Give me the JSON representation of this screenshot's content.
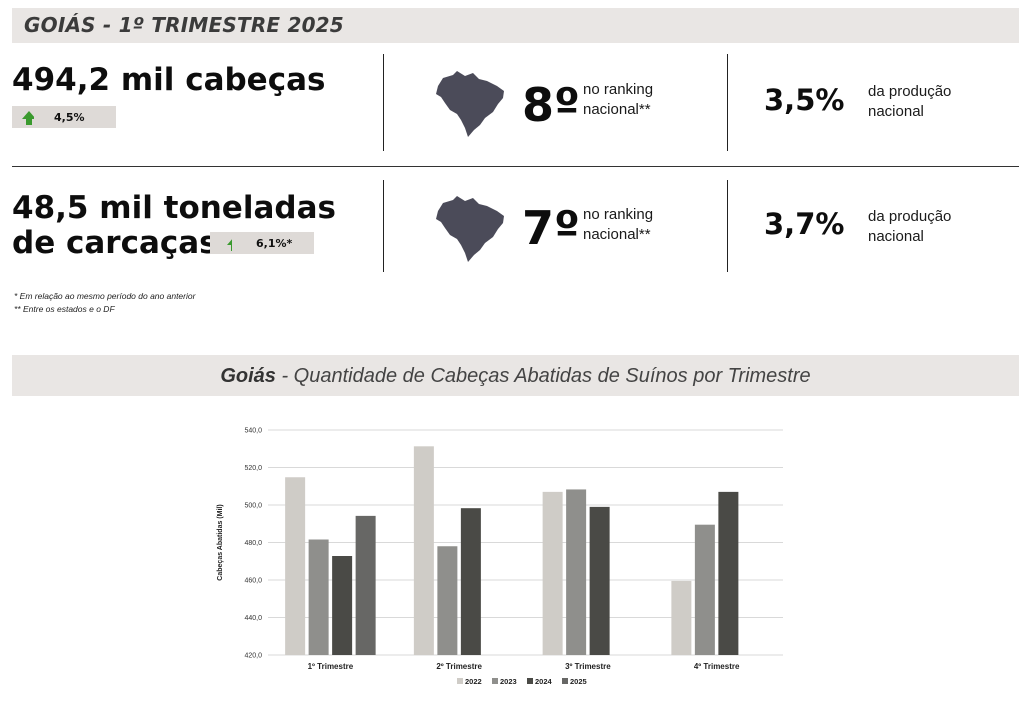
{
  "header": {
    "title": "GOIÁS - 1º TRIMESTRE 2025"
  },
  "stats": {
    "heads": {
      "value": "494,2 mil cabeças",
      "change": "4,5%"
    },
    "carcass": {
      "value_line1": "48,5 mil toneladas",
      "value_line2": "de carcaças",
      "change": "6,1%*"
    },
    "rank_heads": {
      "rank": "8º",
      "label_line1": "no ranking",
      "label_line2": "nacional**"
    },
    "rank_carcass": {
      "rank": "7º",
      "label_line1": "no ranking",
      "label_line2": "nacional**"
    },
    "share_heads": {
      "pct": "3,5%",
      "label_line1": "da produção",
      "label_line2": "nacional"
    },
    "share_carcass": {
      "pct": "3,7%",
      "label_line1": "da produção",
      "label_line2": "nacional"
    }
  },
  "footnotes": [
    "* Em relação ao mesmo período do ano anterior",
    "** Entre os estados e o DF"
  ],
  "chart_title": {
    "bold": "Goiás",
    "rest": " - Quantidade de Cabeças Abatidas de Suínos por Trimestre"
  },
  "colors": {
    "up_arrow": "#3a9a2e",
    "map": "#4b4b59"
  },
  "chart_data": {
    "type": "bar",
    "categories": [
      "1º Trimestre",
      "2º Trimestre",
      "3º Trimestre",
      "4º Trimestre"
    ],
    "series": [
      {
        "name": "2022",
        "color": "#cfccc7",
        "values": [
          514.8,
          531.3,
          507.0,
          459.5
        ]
      },
      {
        "name": "2023",
        "color": "#8f8f8c",
        "values": [
          481.6,
          478.0,
          508.3,
          489.5
        ]
      },
      {
        "name": "2024",
        "color": "#4a4a46",
        "values": [
          472.8,
          498.3,
          499.0,
          507.0
        ]
      },
      {
        "name": "2025",
        "color": "#676765",
        "values": [
          494.2,
          null,
          null,
          null
        ]
      }
    ],
    "ylabel": "Cabeças Abatidas (Mil)",
    "ylim": [
      420,
      540
    ],
    "yticks": [
      "420,0",
      "440,0",
      "460,0",
      "480,0",
      "500,0",
      "520,0",
      "540,0"
    ],
    "grid": true,
    "legend": "bottom"
  }
}
